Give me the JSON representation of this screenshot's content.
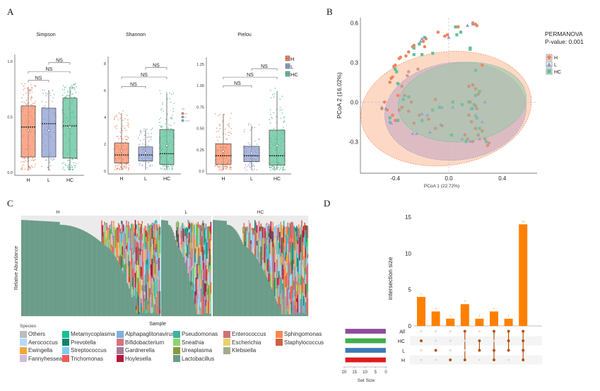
{
  "panels": {
    "A": "A",
    "B": "B",
    "C": "C",
    "D": "D"
  },
  "chart_data": [
    {
      "id": "A-simpson",
      "type": "box",
      "title": "Simpson",
      "categories": [
        "H",
        "L",
        "HC"
      ],
      "ylim": [
        0,
        1.0
      ],
      "yticks": [
        "0.0",
        "0.5",
        "1.0"
      ],
      "tick_values": [
        0,
        0.5,
        1.0
      ],
      "boxes": [
        {
          "group": "H",
          "q1": 0.14,
          "median": 0.41,
          "q3": 0.6,
          "mean": 0.38,
          "whisker_low": 0.02,
          "whisker_high": 0.77
        },
        {
          "group": "L",
          "q1": 0.14,
          "median": 0.44,
          "q3": 0.58,
          "mean": 0.38,
          "whisker_low": 0.02,
          "whisker_high": 0.74
        },
        {
          "group": "HC",
          "q1": 0.13,
          "median": 0.42,
          "q3": 0.67,
          "mean": 0.41,
          "whisker_low": 0.02,
          "whisker_high": 0.77
        }
      ],
      "comparisons": [
        {
          "from": "H",
          "to": "L",
          "label": "NS",
          "level": 0.83
        },
        {
          "from": "H",
          "to": "HC",
          "label": "NS",
          "level": 0.91
        },
        {
          "from": "L",
          "to": "HC",
          "label": "NS",
          "level": 0.99
        }
      ]
    },
    {
      "id": "A-shannon",
      "type": "box",
      "title": "Shannon",
      "categories": [
        "H",
        "L",
        "HC"
      ],
      "ylim": [
        0,
        8
      ],
      "yticks": [
        "0",
        "2",
        "4",
        "6",
        "8"
      ],
      "tick_values": [
        0,
        2,
        4,
        6,
        8
      ],
      "boxes": [
        {
          "group": "H",
          "q1": 0.6,
          "median": 1.2,
          "q3": 2.1,
          "mean": 1.5,
          "whisker_low": 0.1,
          "whisker_high": 4.3
        },
        {
          "group": "L",
          "q1": 0.75,
          "median": 1.2,
          "q3": 1.8,
          "mean": 1.35,
          "whisker_low": 0.1,
          "whisker_high": 3.1
        },
        {
          "group": "HC",
          "q1": 0.5,
          "median": 1.3,
          "q3": 3.1,
          "mean": 1.9,
          "whisker_low": 0.1,
          "whisker_high": 5.8
        }
      ],
      "comparisons": [
        {
          "from": "H",
          "to": "L",
          "label": "NS",
          "level": 6.3
        },
        {
          "from": "H",
          "to": "HC",
          "label": "NS",
          "level": 7.0
        },
        {
          "from": "L",
          "to": "HC",
          "label": "NS",
          "level": 7.7
        }
      ],
      "mini_legend": {
        "title": "Grp",
        "items": [
          "high",
          "low",
          "negative"
        ]
      }
    },
    {
      "id": "A-pielou",
      "type": "box",
      "title": "Pielou",
      "categories": [
        "H",
        "L",
        "HC"
      ],
      "ylim": [
        0,
        1.25
      ],
      "yticks": [
        "0.0",
        "0.25",
        "0.50",
        "0.75",
        "1.00",
        "1.25"
      ],
      "tick_values": [
        0,
        0.25,
        0.5,
        0.75,
        1.0,
        1.25
      ],
      "boxes": [
        {
          "group": "H",
          "q1": 0.08,
          "median": 0.18,
          "q3": 0.32,
          "mean": 0.23,
          "whisker_low": 0.01,
          "whisker_high": 0.67
        },
        {
          "group": "L",
          "q1": 0.11,
          "median": 0.18,
          "q3": 0.29,
          "mean": 0.21,
          "whisker_low": 0.01,
          "whisker_high": 0.53
        },
        {
          "group": "HC",
          "q1": 0.07,
          "median": 0.18,
          "q3": 0.48,
          "mean": 0.3,
          "whisker_low": 0.01,
          "whisker_high": 0.94
        }
      ],
      "comparisons": [
        {
          "from": "H",
          "to": "L",
          "label": "NS",
          "level": 1.0
        },
        {
          "from": "H",
          "to": "HC",
          "label": "NS",
          "level": 1.1
        },
        {
          "from": "L",
          "to": "HC",
          "label": "NS",
          "level": 1.2
        }
      ],
      "legend": {
        "items": [
          "H",
          "L",
          "HC"
        ]
      }
    },
    {
      "id": "B-pcoa",
      "type": "scatter",
      "xlabel": "PCoA 1 (22.72%)",
      "ylabel": "PCoA 2 (16.02%)",
      "xticks": [
        "-0.4",
        "0.0",
        "0.4"
      ],
      "xtick_values": [
        -0.4,
        0.0,
        0.4
      ],
      "yticks": [
        "-0.3",
        "0.0",
        "0.3",
        "0.6"
      ],
      "ytick_values": [
        -0.3,
        0.0,
        0.3,
        0.6
      ],
      "xlim": [
        -0.66,
        0.66
      ],
      "ylim": [
        -0.54,
        0.64
      ],
      "annotation": [
        "PERMANOVA",
        "P-value: 0.001"
      ],
      "legend": [
        "H",
        "L",
        "HC"
      ],
      "ellipses": [
        {
          "group": "H",
          "cx": -0.02,
          "cy": -0.05,
          "rx": 0.64,
          "ry": 0.43,
          "angle": -8
        },
        {
          "group": "L",
          "cx": 0.05,
          "cy": -0.07,
          "rx": 0.53,
          "ry": 0.37,
          "angle": -6
        },
        {
          "group": "HC",
          "cx": 0.1,
          "cy": 0.0,
          "rx": 0.48,
          "ry": 0.3,
          "angle": -6
        }
      ],
      "series": [
        {
          "name": "H",
          "shape": "circle",
          "points": [
            [
              0.2,
              0.59
            ],
            [
              0.18,
              0.6
            ],
            [
              0.21,
              0.58
            ],
            [
              0.07,
              0.57
            ],
            [
              -0.08,
              0.53
            ],
            [
              -0.01,
              0.51
            ],
            [
              -0.03,
              0.5
            ],
            [
              -0.17,
              0.48
            ],
            [
              -0.19,
              0.46
            ],
            [
              -0.18,
              0.42
            ],
            [
              -0.26,
              0.43
            ],
            [
              -0.27,
              0.42
            ],
            [
              -0.3,
              0.38
            ],
            [
              -0.32,
              0.35
            ],
            [
              -0.36,
              0.34
            ],
            [
              -0.37,
              0.33
            ],
            [
              -0.4,
              0.28
            ],
            [
              -0.41,
              0.27
            ],
            [
              -0.42,
              0.19
            ],
            [
              -0.43,
              0.18
            ],
            [
              -0.44,
              0.15
            ],
            [
              -0.3,
              0.23
            ],
            [
              -0.31,
              0.2
            ],
            [
              -0.35,
              0.12
            ],
            [
              -0.38,
              0.05
            ],
            [
              -0.48,
              0.0
            ],
            [
              -0.5,
              -0.05
            ],
            [
              -0.46,
              -0.06
            ],
            [
              -0.42,
              -0.1
            ],
            [
              -0.4,
              -0.14
            ],
            [
              -0.37,
              -0.06
            ],
            [
              -0.35,
              -0.04
            ],
            [
              -0.33,
              0.05
            ],
            [
              -0.3,
              -0.07
            ],
            [
              -0.26,
              -0.16
            ],
            [
              -0.28,
              0.0
            ],
            [
              -0.22,
              -0.1
            ],
            [
              -0.15,
              -0.13
            ],
            [
              -0.1,
              -0.2
            ],
            [
              -0.05,
              -0.18
            ],
            [
              0.15,
              0.12
            ],
            [
              0.18,
              0.13
            ],
            [
              0.2,
              0.1
            ],
            [
              0.22,
              0.06
            ],
            [
              0.16,
              0.0
            ],
            [
              0.19,
              -0.02
            ],
            [
              0.21,
              -0.05
            ],
            [
              0.15,
              -0.1
            ],
            [
              0.17,
              -0.15
            ],
            [
              0.2,
              -0.2
            ],
            [
              0.22,
              -0.25
            ],
            [
              0.25,
              -0.22
            ],
            [
              0.27,
              -0.28
            ],
            [
              0.3,
              -0.31
            ],
            [
              0.29,
              -0.33
            ],
            [
              0.14,
              -0.28
            ],
            [
              0.12,
              -0.25
            ],
            [
              0.18,
              -0.3
            ],
            [
              0.25,
              0.28
            ],
            [
              -0.23,
              0.25
            ],
            [
              -0.1,
              0.02
            ]
          ]
        },
        {
          "name": "L",
          "shape": "triangle",
          "points": [
            [
              0.14,
              0.58
            ],
            [
              0.18,
              0.59
            ],
            [
              0.0,
              0.49
            ],
            [
              -0.2,
              0.48
            ],
            [
              -0.21,
              0.46
            ],
            [
              -0.5,
              -0.04
            ],
            [
              -0.47,
              -0.05
            ],
            [
              -0.44,
              -0.15
            ],
            [
              -0.43,
              -0.16
            ],
            [
              -0.27,
              -0.24
            ],
            [
              -0.24,
              -0.24
            ],
            [
              -0.2,
              -0.09
            ],
            [
              -0.16,
              -0.1
            ],
            [
              -0.14,
              -0.23
            ],
            [
              -0.06,
              -0.17
            ],
            [
              -0.05,
              -0.04
            ],
            [
              0.03,
              -0.04
            ],
            [
              0.18,
              -0.05
            ],
            [
              0.2,
              -0.1
            ],
            [
              0.27,
              0.0
            ],
            [
              0.23,
              -0.28
            ],
            [
              0.16,
              -0.3
            ],
            [
              0.1,
              -0.28
            ],
            [
              0.25,
              -0.15
            ]
          ]
        },
        {
          "name": "HC",
          "shape": "square",
          "points": [
            [
              0.05,
              0.57
            ],
            [
              0.09,
              0.53
            ],
            [
              0.06,
              0.51
            ],
            [
              0.16,
              0.41
            ],
            [
              0.16,
              0.4
            ],
            [
              -0.18,
              0.49
            ],
            [
              -0.22,
              0.44
            ],
            [
              -0.26,
              0.41
            ],
            [
              -0.26,
              0.36
            ],
            [
              -0.2,
              0.36
            ],
            [
              -0.12,
              0.37
            ],
            [
              -0.4,
              0.25
            ],
            [
              -0.39,
              0.23
            ],
            [
              -0.38,
              0.14
            ],
            [
              0.2,
              0.24
            ],
            [
              -0.34,
              0.02
            ],
            [
              -0.44,
              -0.12
            ],
            [
              -0.38,
              -0.14
            ],
            [
              -0.2,
              -0.14
            ],
            [
              -0.12,
              -0.06
            ],
            [
              -0.07,
              -0.04
            ],
            [
              0.03,
              0.0
            ],
            [
              0.1,
              -0.02
            ],
            [
              0.15,
              0.0
            ],
            [
              0.2,
              0.05
            ],
            [
              0.23,
              0.08
            ],
            [
              0.17,
              -0.05
            ],
            [
              0.21,
              -0.12
            ],
            [
              0.23,
              -0.2
            ],
            [
              0.28,
              -0.3
            ],
            [
              0.02,
              -0.25
            ],
            [
              0.13,
              -0.3
            ],
            [
              0.2,
              -0.03
            ],
            [
              -0.3,
              0.04
            ]
          ]
        }
      ]
    },
    {
      "id": "C-stacked",
      "type": "bar",
      "stacked": true,
      "ylabel": "Relative Abundance",
      "xlabel": "Sample",
      "facets": [
        "H",
        "L",
        "HC"
      ],
      "facet_sample_fraction": [
        0.45,
        0.17,
        0.38
      ],
      "lactobacillus_plateau_end": [
        0.6,
        0.3,
        0.32
      ],
      "legend_title": "Species",
      "species": [
        {
          "name": "Others",
          "color": "#bdbdbd"
        },
        {
          "name": "Aerococcus",
          "color": "#b3d9f7"
        },
        {
          "name": "Ewingella",
          "color": "#f3a63a"
        },
        {
          "name": "Fannyhessea",
          "color": "#d2bcd9"
        },
        {
          "name": "Metamycoplasma",
          "color": "#16c196"
        },
        {
          "name": "Prevotella",
          "color": "#0f8466"
        },
        {
          "name": "Streptococcus",
          "color": "#7fcdf5"
        },
        {
          "name": "Trichomonas",
          "color": "#f25a57"
        },
        {
          "name": "Alphapaglitonavirus",
          "color": "#7fb0df"
        },
        {
          "name": "Bifidobacterium",
          "color": "#d9707f"
        },
        {
          "name": "Gardnerella",
          "color": "#a67a98"
        },
        {
          "name": "Hoylesella",
          "color": "#b5163f"
        },
        {
          "name": "Pseudomonas",
          "color": "#3fb3a3"
        },
        {
          "name": "Sneathia",
          "color": "#8fd46b"
        },
        {
          "name": "Ureaplasma",
          "color": "#869a3a"
        },
        {
          "name": "Lactobacillus",
          "color": "#6b9c89"
        },
        {
          "name": "Enterococcus",
          "color": "#cf7272"
        },
        {
          "name": "Escherichia",
          "color": "#e6d36a"
        },
        {
          "name": "Klebsiella",
          "color": "#a1ad8f"
        },
        {
          "name": "Sphingomonas",
          "color": "#f98a4d"
        },
        {
          "name": "Staphylococcus",
          "color": "#cf6041"
        }
      ]
    },
    {
      "id": "D-upset",
      "type": "bar",
      "ylabel": "intersection size",
      "yticks": [
        "0",
        "5",
        "10",
        "15"
      ],
      "tick_values": [
        0,
        5,
        10,
        15
      ],
      "ylim": [
        0,
        15
      ],
      "values": [
        4,
        2,
        1,
        3,
        1,
        2,
        1,
        14
      ],
      "value_labels": [
        "4",
        "2",
        "1",
        "3",
        "1",
        "2",
        "1",
        "14"
      ],
      "sets": [
        "All",
        "HC",
        "L",
        "H"
      ],
      "set_colors": [
        "#8e4a9e",
        "#3faf4a",
        "#3a7ab8",
        "#e31a1c"
      ],
      "set_sizes": [
        19.5,
        19.5,
        19.5,
        19.5
      ],
      "set_size_label": "Set Size",
      "set_size_ticks": [
        "20",
        "15",
        "10",
        "5",
        "0"
      ],
      "set_size_tick_values": [
        20,
        15,
        10,
        5,
        0
      ],
      "matrix": [
        [
          0,
          1,
          0,
          0
        ],
        [
          0,
          0,
          1,
          0
        ],
        [
          0,
          0,
          0,
          1
        ],
        [
          1,
          0,
          0,
          1
        ],
        [
          0,
          1,
          1,
          0
        ],
        [
          1,
          0,
          1,
          1
        ],
        [
          1,
          1,
          1,
          0
        ],
        [
          1,
          1,
          1,
          1
        ]
      ],
      "bar_color": "#ff8000",
      "dot_color": "#b5541a"
    }
  ],
  "group_colors": {
    "H": "#f4845c",
    "L": "#8f9ed0",
    "HC": "#5fbf9a"
  },
  "box_fill": {
    "H": "#f48e68",
    "L": "#8f9ed0",
    "HC": "#5fc09a"
  }
}
